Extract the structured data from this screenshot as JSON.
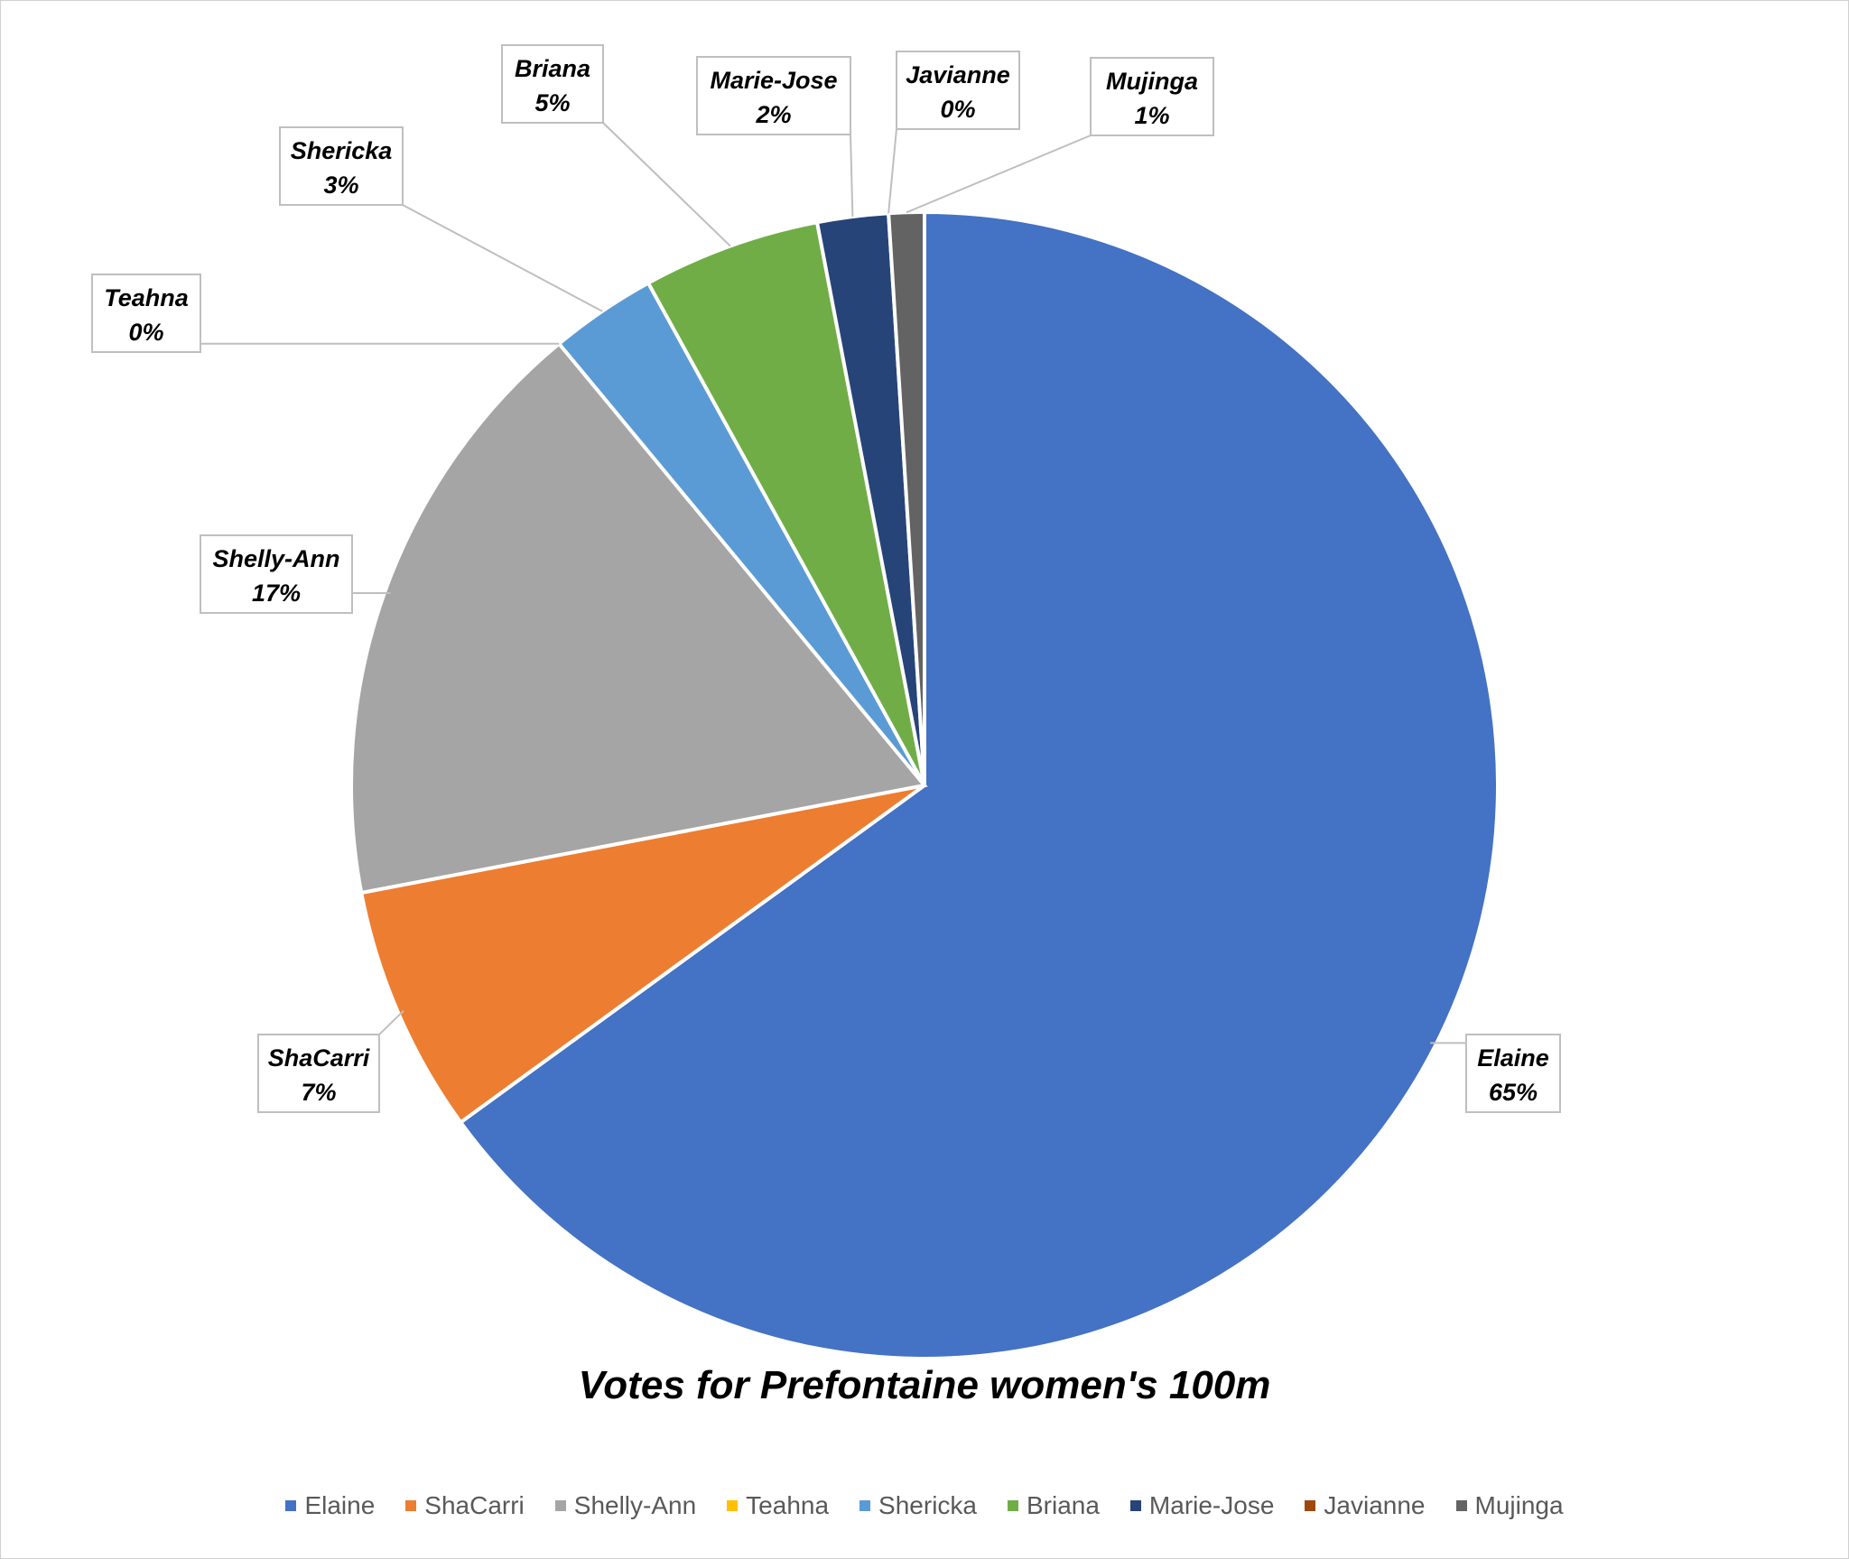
{
  "chart_data": {
    "type": "pie",
    "title": "Votes for Prefontaine women's 100m",
    "legend_position": "bottom",
    "slices": [
      {
        "name": "Elaine",
        "value": 65,
        "label": "65%",
        "color": "#4472C4"
      },
      {
        "name": "ShaCarri",
        "value": 7,
        "label": "7%",
        "color": "#ED7D31"
      },
      {
        "name": "Shelly-Ann",
        "value": 17,
        "label": "17%",
        "color": "#A5A5A5"
      },
      {
        "name": "Teahna",
        "value": 0,
        "label": "0%",
        "color": "#FFC000"
      },
      {
        "name": "Shericka",
        "value": 3,
        "label": "3%",
        "color": "#5B9BD5"
      },
      {
        "name": "Briana",
        "value": 5,
        "label": "5%",
        "color": "#70AD47"
      },
      {
        "name": "Marie-Jose",
        "value": 2,
        "label": "2%",
        "color": "#264478"
      },
      {
        "name": "Javianne",
        "value": 0,
        "label": "0%",
        "color": "#9E480E"
      },
      {
        "name": "Mujinga",
        "value": 1,
        "label": "1%",
        "color": "#636363"
      }
    ]
  }
}
